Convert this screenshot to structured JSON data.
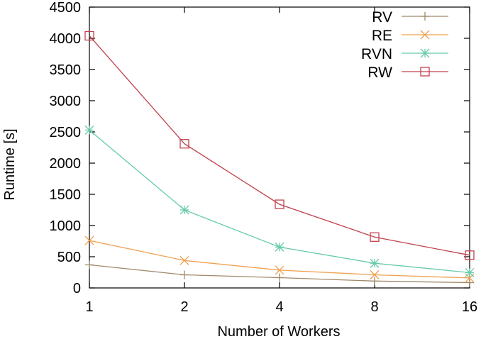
{
  "chart_data": {
    "type": "line",
    "title": "",
    "xlabel": "Number of Workers",
    "ylabel": "Runtime [s]",
    "x": [
      1,
      2,
      4,
      8,
      16
    ],
    "x_ticks": [
      "1",
      "2",
      "4",
      "8",
      "16"
    ],
    "x_scale": "log2",
    "ylim": [
      0,
      4500
    ],
    "y_ticks": [
      "0",
      "500",
      "1000",
      "1500",
      "2000",
      "2500",
      "3000",
      "3500",
      "4000",
      "4500"
    ],
    "grid": false,
    "legend_position": "top-right",
    "series": [
      {
        "name": "RV",
        "marker": "plus",
        "color": "#a08a6a",
        "values": [
          370,
          210,
          165,
          110,
          85
        ]
      },
      {
        "name": "RE",
        "marker": "cross",
        "color": "#f0a050",
        "values": [
          760,
          440,
          285,
          210,
          160
        ]
      },
      {
        "name": "RVN",
        "marker": "star",
        "color": "#66cca8",
        "values": [
          2530,
          1250,
          655,
          395,
          245
        ]
      },
      {
        "name": "RW",
        "marker": "square",
        "color": "#c0404c",
        "values": [
          4040,
          2310,
          1340,
          815,
          525
        ]
      }
    ]
  }
}
